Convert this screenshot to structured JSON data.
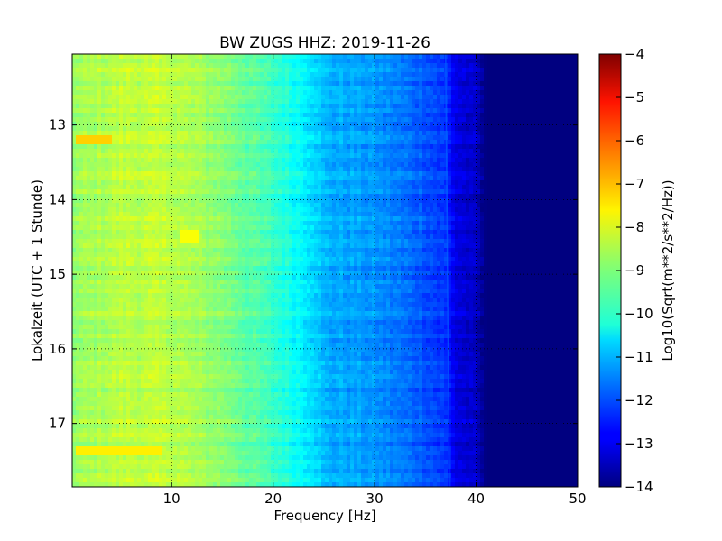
{
  "chart_data": {
    "type": "heatmap",
    "title": "BW ZUGS HHZ: 2019-11-26",
    "xlabel": "Frequency [Hz]",
    "ylabel": "Lokalzeit (UTC + 1 Stunde)",
    "xlim": [
      0.2,
      50
    ],
    "ylim": [
      17.85,
      12.05
    ],
    "y_inverted": true,
    "xticks": [
      10,
      20,
      30,
      40,
      50
    ],
    "yticks": [
      13,
      14,
      15,
      16,
      17
    ],
    "grid": true,
    "colormap": "jet",
    "colorbar": {
      "label": "Log10(Sqrt(m**2/s**2/Hz))",
      "range": [
        -14,
        -4
      ],
      "ticks": [
        -4,
        -5,
        -6,
        -7,
        -8,
        -9,
        -10,
        -11,
        -12,
        -13,
        -14
      ]
    },
    "frequency_profile_hz": [
      0,
      5,
      10,
      15,
      20,
      22,
      24,
      25,
      30,
      35,
      37,
      38,
      40,
      41,
      50
    ],
    "value_profile": [
      -8.8,
      -8.4,
      -8.4,
      -8.9,
      -9.7,
      -10.1,
      -10.5,
      -11.0,
      -11.3,
      -11.9,
      -12.3,
      -13.0,
      -13.4,
      -14.0,
      -14.0
    ],
    "features": [
      {
        "label": "narrowband line",
        "frequency_hz": 37.0,
        "value": -11.8
      },
      {
        "label": "high band at hour",
        "time_h": 13.18,
        "freq_range_hz": [
          0.5,
          4
        ],
        "value": -7.3
      },
      {
        "label": "high band at hour",
        "time_h": 17.35,
        "freq_range_hz": [
          0.5,
          9
        ],
        "value": -7.6
      },
      {
        "label": "local bump",
        "time_h": 14.45,
        "frequency_hz": 11.5,
        "value": -7.8
      }
    ]
  }
}
